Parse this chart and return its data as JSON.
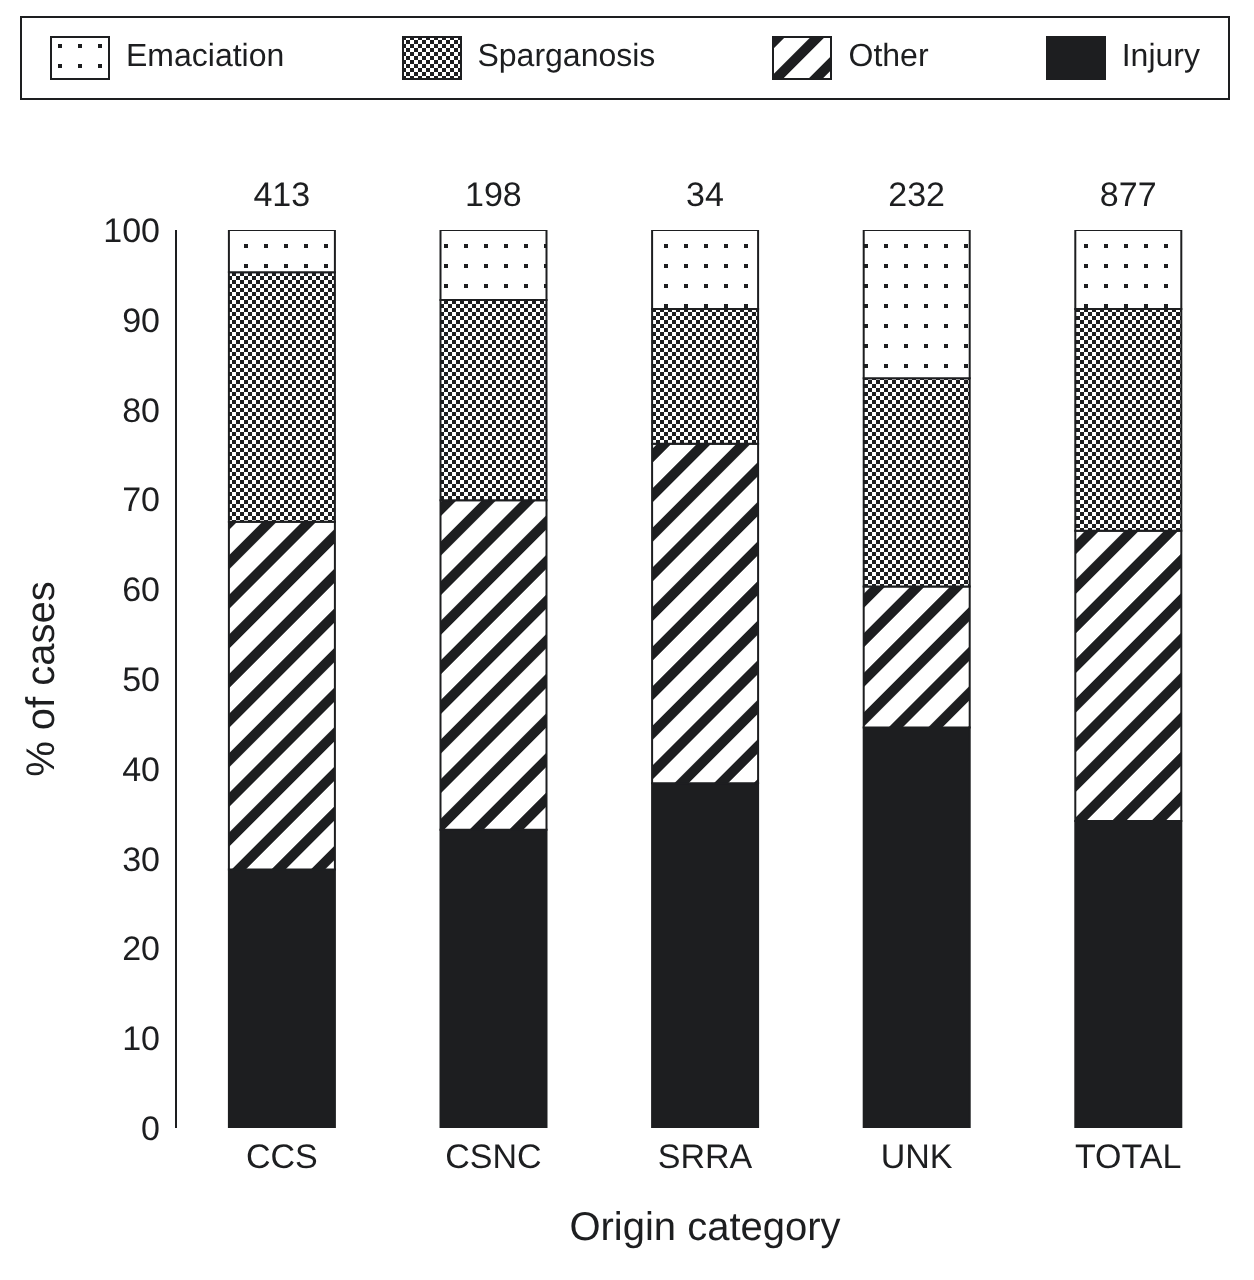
{
  "chart_data": {
    "type": "bar",
    "stacked": true,
    "xlabel": "Origin category",
    "ylabel": "% of cases",
    "categories": [
      "CCS",
      "CSNC",
      "SRRA",
      "UNK",
      "TOTAL"
    ],
    "series": [
      {
        "name": "Injury",
        "color": "#1d1e20",
        "values": [
          28.8,
          33.2,
          38.4,
          44.6,
          34.2
        ]
      },
      {
        "name": "Other",
        "color": "#1d1e20",
        "values": [
          38.7,
          36.7,
          37.8,
          15.7,
          32.3
        ]
      },
      {
        "name": "Sparganosis",
        "color": "#1d1e20",
        "values": [
          27.8,
          22.3,
          15.0,
          23.2,
          24.7
        ]
      },
      {
        "name": "Emaciation",
        "color": "#1d1e20",
        "values": [
          4.7,
          7.8,
          8.8,
          16.5,
          8.8
        ]
      }
    ],
    "annotations": [
      {
        "text": "413",
        "x": "CCS",
        "y": 100
      },
      {
        "text": "198",
        "x": "CSNC",
        "y": 100
      },
      {
        "text": "34",
        "x": "SRRA",
        "y": 100
      },
      {
        "text": "232",
        "x": "UNK",
        "y": 100
      },
      {
        "text": "877",
        "x": "TOTAL",
        "y": 100
      }
    ],
    "ylim": [
      0,
      100
    ],
    "yticks": [
      0,
      10,
      20,
      30,
      40,
      50,
      60,
      70,
      80,
      90,
      100
    ],
    "grid": false,
    "legend": "top"
  }
}
